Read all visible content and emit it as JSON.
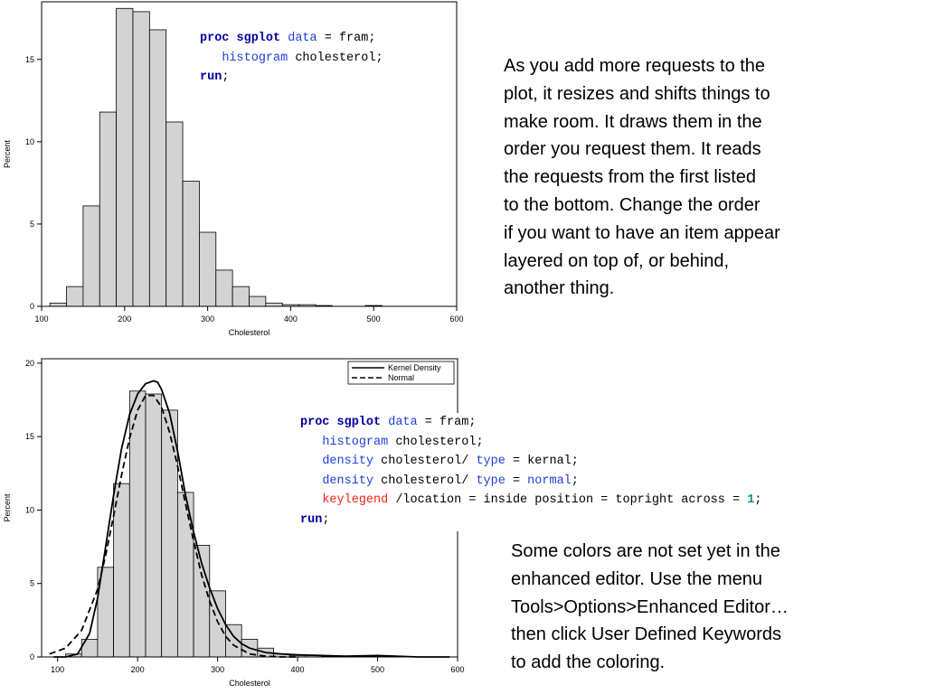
{
  "chart_data": [
    {
      "type": "bar",
      "title": "",
      "xlabel": "Cholesterol",
      "ylabel": "Percent",
      "xlim": [
        100,
        600
      ],
      "ylim": [
        0,
        18.5
      ],
      "xticks": [
        100,
        200,
        300,
        400,
        500,
        600
      ],
      "yticks": [
        0,
        5,
        10,
        15
      ],
      "bin_width": 20,
      "bins": [
        {
          "x": 120,
          "y": 0.2
        },
        {
          "x": 140,
          "y": 1.2
        },
        {
          "x": 160,
          "y": 6.1
        },
        {
          "x": 180,
          "y": 11.8
        },
        {
          "x": 200,
          "y": 18.1
        },
        {
          "x": 220,
          "y": 17.9
        },
        {
          "x": 240,
          "y": 16.8
        },
        {
          "x": 260,
          "y": 11.2
        },
        {
          "x": 280,
          "y": 7.6
        },
        {
          "x": 300,
          "y": 4.5
        },
        {
          "x": 320,
          "y": 2.2
        },
        {
          "x": 340,
          "y": 1.2
        },
        {
          "x": 360,
          "y": 0.6
        },
        {
          "x": 380,
          "y": 0.2
        },
        {
          "x": 400,
          "y": 0.1
        },
        {
          "x": 420,
          "y": 0.1
        },
        {
          "x": 440,
          "y": 0.05
        },
        {
          "x": 500,
          "y": 0.05
        }
      ],
      "grid": false
    },
    {
      "type": "bar",
      "title": "",
      "xlabel": "Cholesterol",
      "ylabel": "Percent",
      "xlim": [
        80,
        600
      ],
      "ylim": [
        0,
        20.3
      ],
      "xticks": [
        100,
        200,
        300,
        400,
        500,
        600
      ],
      "yticks": [
        0,
        5,
        10,
        15,
        20
      ],
      "bin_width": 20,
      "bins": [
        {
          "x": 120,
          "y": 0.2
        },
        {
          "x": 140,
          "y": 1.2
        },
        {
          "x": 160,
          "y": 6.1
        },
        {
          "x": 180,
          "y": 11.8
        },
        {
          "x": 200,
          "y": 18.1
        },
        {
          "x": 220,
          "y": 17.9
        },
        {
          "x": 240,
          "y": 16.8
        },
        {
          "x": 260,
          "y": 11.2
        },
        {
          "x": 280,
          "y": 7.6
        },
        {
          "x": 300,
          "y": 4.5
        },
        {
          "x": 320,
          "y": 2.2
        },
        {
          "x": 340,
          "y": 1.2
        },
        {
          "x": 360,
          "y": 0.6
        },
        {
          "x": 380,
          "y": 0.2
        },
        {
          "x": 400,
          "y": 0.1
        },
        {
          "x": 420,
          "y": 0.1
        },
        {
          "x": 440,
          "y": 0.05
        },
        {
          "x": 500,
          "y": 0.05
        }
      ],
      "kernel_density": {
        "name": "Kernel Density",
        "x": [
          95,
          110,
          125,
          140,
          150,
          160,
          170,
          180,
          190,
          200,
          210,
          220,
          225,
          230,
          240,
          250,
          260,
          270,
          280,
          290,
          300,
          310,
          320,
          330,
          340,
          360,
          380,
          400,
          430,
          460,
          500,
          550,
          590
        ],
        "y": [
          0,
          0,
          0.2,
          1.6,
          4.0,
          7.5,
          11.0,
          14.2,
          16.5,
          17.9,
          18.6,
          18.8,
          18.7,
          18.2,
          16.6,
          14.0,
          11.0,
          8.5,
          6.4,
          4.7,
          3.3,
          2.2,
          1.4,
          0.9,
          0.6,
          0.3,
          0.2,
          0.15,
          0.1,
          0.05,
          0.1,
          0,
          0
        ]
      },
      "normal": {
        "name": "Normal",
        "x": [
          90,
          110,
          130,
          150,
          160,
          170,
          180,
          190,
          200,
          210,
          220,
          230,
          240,
          250,
          260,
          270,
          280,
          290,
          300,
          310,
          320,
          340,
          360,
          380,
          400
        ],
        "y": [
          0.2,
          0.6,
          1.8,
          4.6,
          6.9,
          9.6,
          12.4,
          14.9,
          16.8,
          17.8,
          17.8,
          17.0,
          15.3,
          13.0,
          10.4,
          7.9,
          5.6,
          3.8,
          2.4,
          1.4,
          0.8,
          0.2,
          0.05,
          0,
          0
        ]
      },
      "legend": {
        "placement": "top-right",
        "entries": [
          "Kernel Density",
          "Normal"
        ]
      },
      "grid": false
    }
  ],
  "code1": {
    "l1_kw": "proc sgplot",
    "l1_opt": "data",
    "l1_rest": " = fram;",
    "l2_kw": "histogram",
    "l2_rest": " cholesterol;",
    "l3_kw": "run",
    "l3_rest": ";"
  },
  "code2": {
    "l1_kw": "proc sgplot",
    "l1_opt": "data",
    "l1_rest": " = fram;",
    "l2_kw": "histogram",
    "l2_rest": " cholesterol;",
    "l3_kw": "density",
    "l3_mid": " cholesterol/ ",
    "l3_opt": "type",
    "l3_rest": " = kernal;",
    "l4_kw": "density",
    "l4_mid": " cholesterol/ ",
    "l4_opt": "type",
    "l4_eq": " = ",
    "l4_val": "normal",
    "l4_rest": ";",
    "l5_kw": "keylegend",
    "l5_mid": " /location = inside position = topright across = ",
    "l5_num": "1",
    "l5_rest": ";",
    "l6_kw": "run",
    "l6_rest": ";"
  },
  "note1": [
    "As you add more requests to the",
    "plot, it resizes and shifts things to",
    "make room.  It draws them in the",
    "order you request them.  It reads",
    "the requests from the first listed",
    "to the bottom.  Change the order",
    "if you want to have an item appear",
    "layered on top of, or behind,",
    "another thing."
  ],
  "note2": [
    "Some colors are not set yet in the",
    "enhanced editor.  Use  the menu",
    "Tools>Options>Enhanced Editor…",
    "then click User Defined Keywords",
    "to add the coloring."
  ],
  "colors": {
    "bar_fill": "#d3d3d3",
    "keyword": "#0000a0",
    "option": "#1f3fd8",
    "legend_kw": "#e8261b",
    "number": "#0e8a8a"
  }
}
